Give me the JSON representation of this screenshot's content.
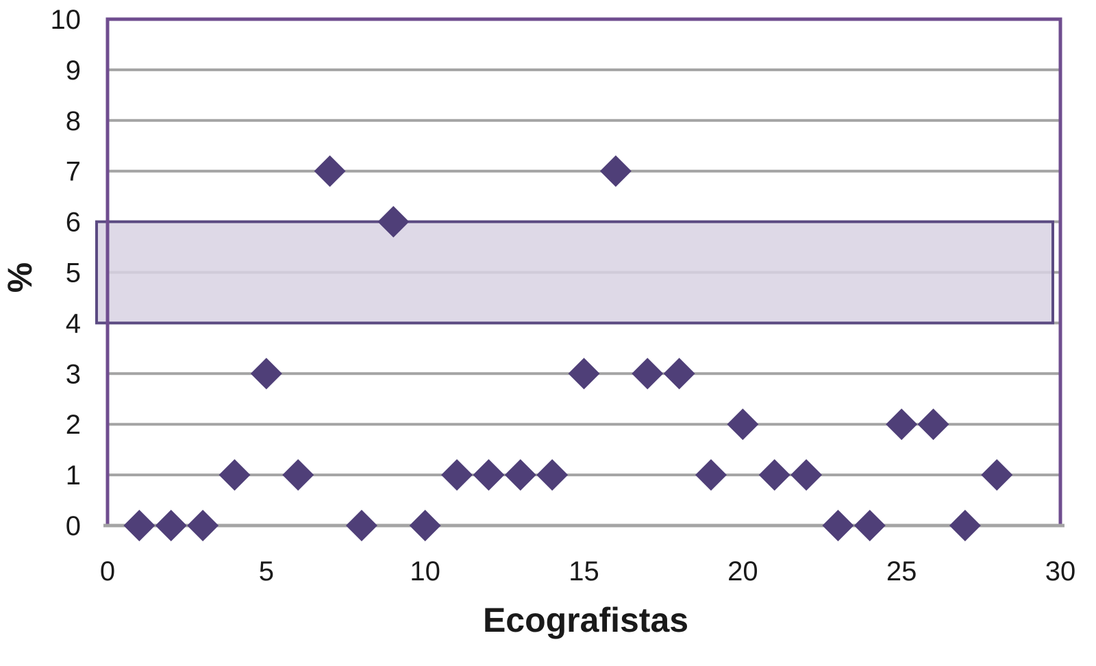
{
  "chart_data": {
    "type": "scatter",
    "title": "",
    "xlabel": "Ecografistas",
    "ylabel": "%",
    "xlim": [
      0,
      30
    ],
    "ylim": [
      0,
      10
    ],
    "x_ticks": [
      "0",
      "5",
      "10",
      "15",
      "20",
      "25",
      "30"
    ],
    "y_ticks": [
      "0",
      "1",
      "2",
      "3",
      "4",
      "5",
      "6",
      "7",
      "8",
      "9",
      "10"
    ],
    "grid": "horizontal",
    "legend": "none",
    "reference_band": {
      "y_min": 4,
      "y_max": 6
    },
    "series": [
      {
        "points": [
          {
            "x": 1,
            "y": 0
          },
          {
            "x": 2,
            "y": 0
          },
          {
            "x": 3,
            "y": 0
          },
          {
            "x": 4,
            "y": 1
          },
          {
            "x": 5,
            "y": 3
          },
          {
            "x": 6,
            "y": 1
          },
          {
            "x": 7,
            "y": 7
          },
          {
            "x": 8,
            "y": 0
          },
          {
            "x": 9,
            "y": 6
          },
          {
            "x": 10,
            "y": 0
          },
          {
            "x": 11,
            "y": 1
          },
          {
            "x": 12,
            "y": 1
          },
          {
            "x": 13,
            "y": 1
          },
          {
            "x": 14,
            "y": 1
          },
          {
            "x": 15,
            "y": 3
          },
          {
            "x": 16,
            "y": 7
          },
          {
            "x": 17,
            "y": 3
          },
          {
            "x": 18,
            "y": 3
          },
          {
            "x": 19,
            "y": 1
          },
          {
            "x": 20,
            "y": 2
          },
          {
            "x": 21,
            "y": 1
          },
          {
            "x": 22,
            "y": 1
          },
          {
            "x": 23,
            "y": 0
          },
          {
            "x": 24,
            "y": 0
          },
          {
            "x": 25,
            "y": 2
          },
          {
            "x": 26,
            "y": 2
          },
          {
            "x": 27,
            "y": 0
          },
          {
            "x": 28,
            "y": 1
          }
        ]
      }
    ],
    "colors": {
      "frame": "#6f4d8f",
      "marker": "#4f3f78",
      "grid": "#a4a4a4",
      "band_fill": "#d8d2e3",
      "band_stroke": "#5b4a82"
    }
  }
}
